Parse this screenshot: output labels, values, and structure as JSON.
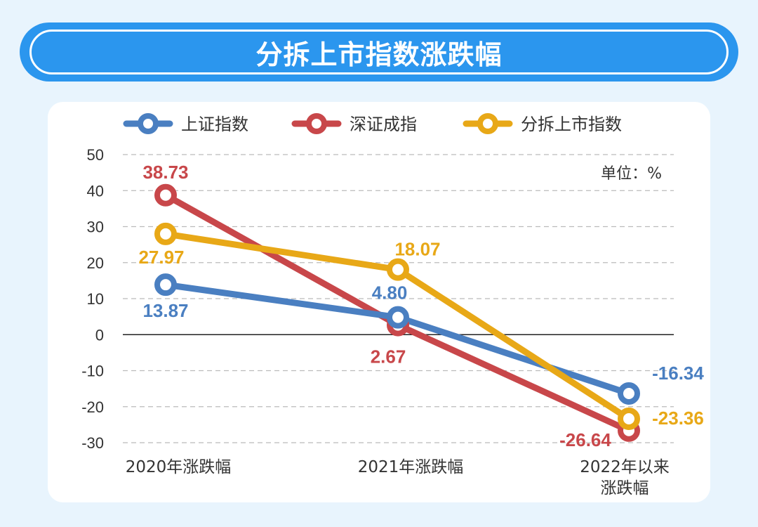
{
  "title": "分拆上市指数涨跌幅",
  "chart_data": {
    "type": "line",
    "title": "分拆上市指数涨跌幅",
    "unit_label": "单位：%",
    "categories": [
      [
        "2020年涨跌幅"
      ],
      [
        "2021年涨跌幅"
      ],
      [
        "2022年以来",
        "涨跌幅"
      ]
    ],
    "ylim": [
      -30,
      50
    ],
    "yticks": [
      50,
      40,
      30,
      20,
      10,
      0,
      -10,
      -20,
      -30
    ],
    "grid": true,
    "legend_position": "top",
    "series": [
      {
        "name": "上证指数",
        "color": "#4a7fc1",
        "values": [
          13.87,
          4.8,
          -16.34
        ],
        "labels": [
          "13.87",
          "4.80",
          "-16.34"
        ]
      },
      {
        "name": "深证成指",
        "color": "#c8474a",
        "values": [
          38.73,
          2.67,
          -26.64
        ],
        "labels": [
          "38.73",
          "2.67",
          "-26.64"
        ]
      },
      {
        "name": "分拆上市指数",
        "color": "#e8a817",
        "values": [
          27.97,
          18.07,
          -23.36
        ],
        "labels": [
          "27.97",
          "18.07",
          "-23.36"
        ]
      }
    ]
  }
}
